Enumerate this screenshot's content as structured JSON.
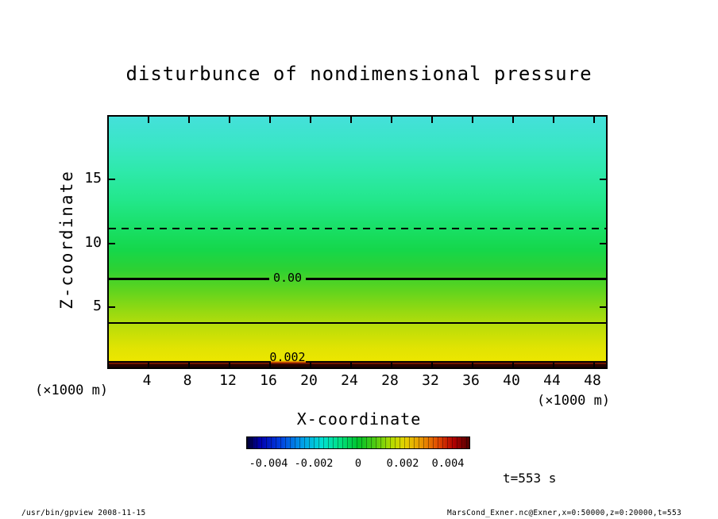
{
  "chart_data": {
    "type": "heatmap",
    "title": "disturbunce of nondimensional pressure",
    "xlabel": "X-coordinate",
    "ylabel": "Z-coordinate",
    "x_unit_label": "(×1000 m)",
    "y_unit_label": "(×1000 m)",
    "xlim": [
      0,
      50
    ],
    "ylim": [
      0,
      20
    ],
    "x_ticks": [
      "4",
      "8",
      "12",
      "16",
      "20",
      "24",
      "28",
      "32",
      "36",
      "40",
      "44",
      "48"
    ],
    "y_ticks": [
      "15",
      "10",
      "5"
    ],
    "field": "disturbance of nondimensional pressure; horizontally uniform shading varying only with height",
    "vertical_profile": [
      {
        "z_km": 20,
        "color": "#44e0da",
        "approx_value": -0.003
      },
      {
        "z_km": 11,
        "color": "#1fe47f",
        "approx_value": -0.002
      },
      {
        "z_km": 7.1,
        "color": "#22d53a",
        "approx_value": 0.0
      },
      {
        "z_km": 3.6,
        "color": "#8cd813",
        "approx_value": 0.002
      },
      {
        "z_km": 0.5,
        "color": "#ece600",
        "approx_value": 0.004
      },
      {
        "z_km": 0.1,
        "color": "#1a0200",
        "approx_value": 0.005
      }
    ],
    "contours": [
      {
        "z_km": 11.0,
        "line": "dashed-thin",
        "label": null
      },
      {
        "z_km": 7.1,
        "line": "solid-thick",
        "label": "0.00"
      },
      {
        "z_km": 3.6,
        "line": "solid-thin",
        "label": null
      },
      {
        "z_km": 0.5,
        "line": "solid-thin",
        "label": "0.002"
      }
    ],
    "colorbar": {
      "orientation": "horizontal",
      "range": [
        -0.005,
        0.005
      ],
      "tick_labels": [
        "-0.004",
        "-0.002",
        "0",
        "0.002",
        "0.004"
      ],
      "colors": [
        "#000030",
        "#0000b0",
        "#0040e0",
        "#00a0e8",
        "#00e0d0",
        "#00e080",
        "#00c22a",
        "#55cc11",
        "#b4dc00",
        "#e6d200",
        "#e89000",
        "#e04800",
        "#b00000",
        "#500000"
      ]
    },
    "legend_position": "bottom",
    "grid": false
  },
  "annotations": {
    "time_label": "t=553 s"
  },
  "footer": {
    "left": "/usr/bin/gpview  2008-11-15",
    "right": "MarsCond_Exner.nc@Exner,x=0:50000,z=0:20000,t=553"
  }
}
